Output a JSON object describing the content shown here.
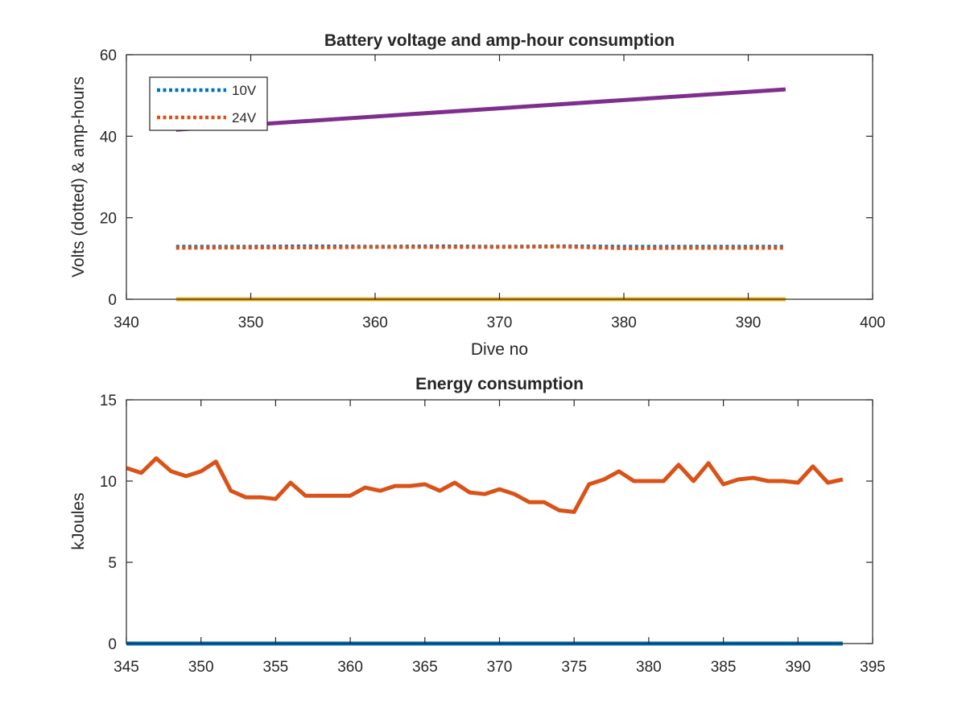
{
  "chart_data": [
    {
      "type": "line",
      "title": "Battery voltage and amp-hour consumption",
      "xlabel": "Dive no",
      "ylabel": "Volts (dotted) & amp-hours",
      "xlim": [
        340,
        400
      ],
      "ylim": [
        0,
        60
      ],
      "xticks": [
        "340",
        "350",
        "360",
        "370",
        "380",
        "390",
        "400"
      ],
      "yticks": [
        "0",
        "20",
        "40",
        "60"
      ],
      "grid": false,
      "legend_position": "top-left",
      "series": [
        {
          "name": "10V",
          "style": "dotted",
          "color": "#0072BD",
          "x": [
            344,
            350,
            355,
            360,
            365,
            370,
            375,
            380,
            385,
            390,
            393
          ],
          "y": [
            12.9,
            12.9,
            13.0,
            12.9,
            13.0,
            12.9,
            13.0,
            12.9,
            12.9,
            12.9,
            12.9
          ]
        },
        {
          "name": "24V",
          "style": "dotted",
          "color": "#D95319",
          "x": [
            344,
            350,
            355,
            360,
            365,
            370,
            375,
            380,
            385,
            390,
            393
          ],
          "y": [
            12.6,
            12.7,
            12.7,
            12.8,
            12.8,
            12.8,
            12.9,
            12.5,
            12.6,
            12.6,
            12.6
          ]
        },
        {
          "style": "solid",
          "color": "#EDB120",
          "x": [
            344,
            393
          ],
          "y": [
            0,
            0
          ]
        },
        {
          "style": "solid",
          "color": "#7E2F8E",
          "x": [
            344,
            393
          ],
          "y": [
            41.6,
            51.5
          ]
        }
      ]
    },
    {
      "type": "line",
      "title": "Energy consumption",
      "xlabel": "",
      "ylabel": "kJoules",
      "xlim": [
        345,
        395
      ],
      "ylim": [
        0,
        15
      ],
      "xticks": [
        "345",
        "350",
        "355",
        "360",
        "365",
        "370",
        "375",
        "380",
        "385",
        "390",
        "395"
      ],
      "yticks": [
        "0",
        "5",
        "10",
        "15"
      ],
      "grid": false,
      "series": [
        {
          "style": "solid",
          "color": "#D95319",
          "x": [
            345,
            346,
            347,
            348,
            349,
            350,
            351,
            352,
            353,
            354,
            355,
            356,
            357,
            358,
            359,
            360,
            361,
            362,
            363,
            364,
            365,
            366,
            367,
            368,
            369,
            370,
            371,
            372,
            373,
            374,
            375,
            376,
            377,
            378,
            379,
            380,
            381,
            382,
            383,
            384,
            385,
            386,
            387,
            388,
            389,
            390,
            391,
            392,
            393
          ],
          "y": [
            10.8,
            10.5,
            11.4,
            10.6,
            10.3,
            10.6,
            11.2,
            9.4,
            9.0,
            9.0,
            8.9,
            9.9,
            9.1,
            9.1,
            9.1,
            9.1,
            9.6,
            9.4,
            9.7,
            9.7,
            9.8,
            9.4,
            9.9,
            9.3,
            9.2,
            9.5,
            9.2,
            8.7,
            8.7,
            8.2,
            8.1,
            9.8,
            10.1,
            10.6,
            10.0,
            10.0,
            10.0,
            11.0,
            10.0,
            11.1,
            9.8,
            10.1,
            10.2,
            10.0,
            10.0,
            9.9,
            10.9,
            9.9,
            10.1
          ]
        },
        {
          "style": "solid",
          "color": "#0072BD",
          "x": [
            345,
            393
          ],
          "y": [
            0,
            0
          ]
        }
      ]
    }
  ]
}
